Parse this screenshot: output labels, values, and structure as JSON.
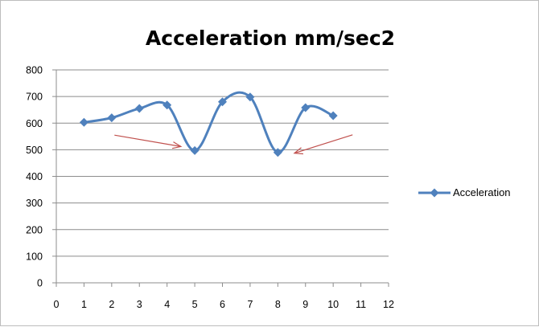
{
  "chart_data": {
    "type": "line",
    "title": "Acceleration mm/sec2",
    "xlabel": "",
    "ylabel": "",
    "xlim": [
      0,
      12
    ],
    "ylim": [
      0,
      800
    ],
    "x_ticks": [
      0,
      1,
      2,
      3,
      4,
      5,
      6,
      7,
      8,
      9,
      10,
      11,
      12
    ],
    "y_ticks": [
      0,
      100,
      200,
      300,
      400,
      500,
      600,
      700,
      800
    ],
    "grid": "horizontal",
    "smooth": true,
    "legend_position": "right",
    "series": [
      {
        "name": "Acceleration",
        "color": "#4f81bd",
        "marker": "diamond",
        "x": [
          1,
          2,
          3,
          4,
          5,
          6,
          7,
          8,
          9,
          10
        ],
        "y": [
          603,
          620,
          655,
          668,
          497,
          680,
          698,
          490,
          658,
          628
        ]
      }
    ],
    "annotations": [
      {
        "type": "arrow",
        "color": "#c0504d",
        "from": [
          2.1,
          555
        ],
        "to": [
          4.5,
          512
        ]
      },
      {
        "type": "arrow",
        "color": "#c0504d",
        "from": [
          10.7,
          556
        ],
        "to": [
          8.6,
          487
        ]
      }
    ]
  }
}
